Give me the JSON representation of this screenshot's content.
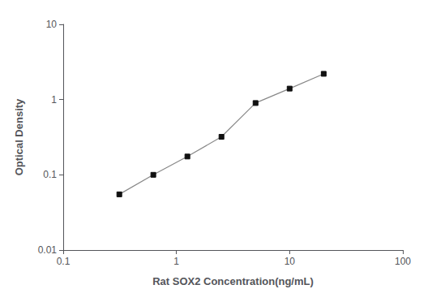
{
  "chart_data": {
    "type": "line",
    "x": [
      0.313,
      0.625,
      1.25,
      2.5,
      5,
      10,
      20
    ],
    "values": [
      0.055,
      0.1,
      0.175,
      0.32,
      0.9,
      1.4,
      2.2
    ],
    "xlabel": "Rat SOX2 Concentration(ng/mL)",
    "ylabel": "Optical Density",
    "xlim": [
      0.1,
      100
    ],
    "ylim": [
      0.01,
      10
    ],
    "xticks": [
      0.1,
      1,
      10,
      100
    ],
    "yticks": [
      0.01,
      0.1,
      1,
      10
    ],
    "log": true,
    "grid": false,
    "color": "#888888",
    "marker": "square"
  }
}
